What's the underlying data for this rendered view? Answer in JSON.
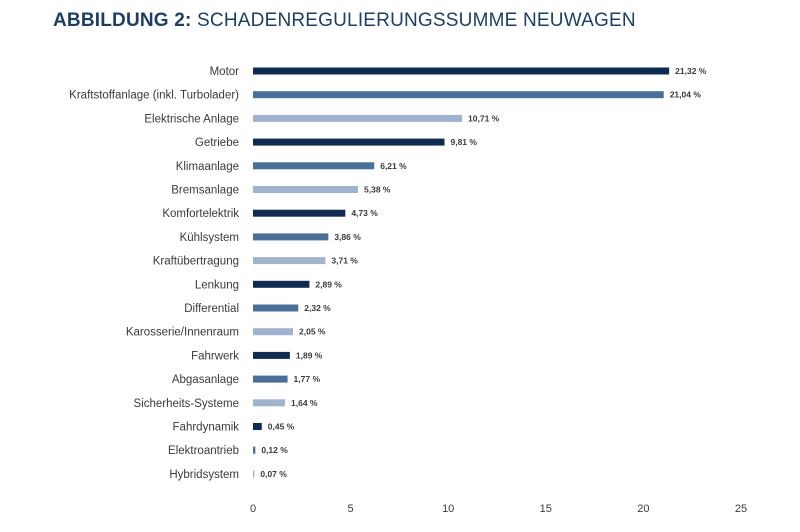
{
  "header": {
    "title_bold": "ABBILDUNG 2:",
    "title_rest": " SCHADENREGULIERUNGSSUMME NEUWAGEN"
  },
  "colors": {
    "title": "#1d3f66",
    "dark": "#0f2b52",
    "mid": "#4a6f99",
    "light": "#9fb3cf"
  },
  "chart_data": {
    "type": "bar",
    "orientation": "horizontal",
    "title": "ABBILDUNG 2: SCHADENREGULIERUNGSSUMME NEUWAGEN",
    "categories": [
      "Motor",
      "Kraftstoffanlage (inkl. Turbolader)",
      "Elektrische Anlage",
      "Getriebe",
      "Klimaanlage",
      "Bremsanlage",
      "Komfortelektrik",
      "Kühlsystem",
      "Kraftübertragung",
      "Lenkung",
      "Differential",
      "Karosserie/Innenraum",
      "Fahrwerk",
      "Abgasanlage",
      "Sicherheits-Systeme",
      "Fahrdynamik",
      "Elektroantrieb",
      "Hybridsystem"
    ],
    "values": [
      21.32,
      21.04,
      10.71,
      9.81,
      6.21,
      5.38,
      4.73,
      3.86,
      3.71,
      2.89,
      2.32,
      2.05,
      1.89,
      1.77,
      1.64,
      0.45,
      0.12,
      0.07
    ],
    "value_labels": [
      "21,32 %",
      "21,04 %",
      "10,71 %",
      "9,81 %",
      "6,21 %",
      "5,38 %",
      "4,73 %",
      "3,86 %",
      "3,71 %",
      "2,89 %",
      "2,32 %",
      "2,05 %",
      "1,89 %",
      "1,77 %",
      "1,64 %",
      "0,45 %",
      "0,12 %",
      "0,07 %"
    ],
    "bar_colors": [
      "dark",
      "mid",
      "light",
      "dark",
      "mid",
      "light",
      "dark",
      "mid",
      "light",
      "dark",
      "mid",
      "light",
      "dark",
      "mid",
      "light",
      "dark",
      "mid",
      "light"
    ],
    "xlim": [
      0,
      25
    ],
    "x_ticks": [
      0,
      5,
      10,
      15,
      20,
      25
    ],
    "x_tick_labels": [
      "0",
      "5",
      "10",
      "15",
      "20",
      "25"
    ],
    "grid": false,
    "legend": "none"
  }
}
